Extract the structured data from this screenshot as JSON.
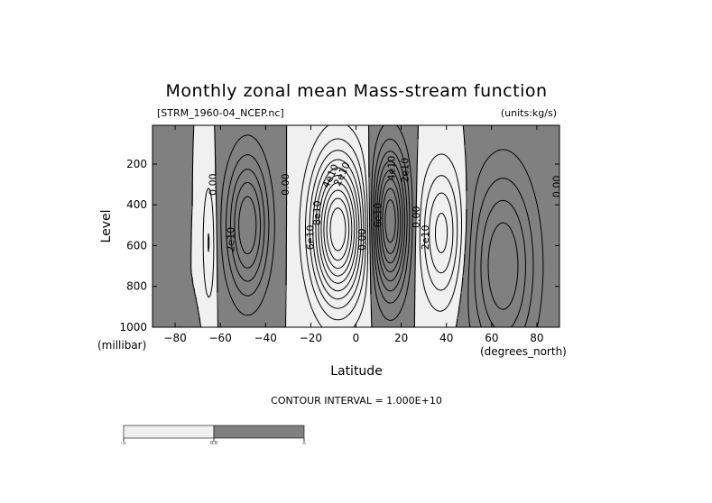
{
  "chart_data": {
    "type": "contour",
    "title": "Monthly zonal mean Mass-stream function",
    "file_label": "[STRM_1960-04_NCEP.nc]",
    "units_label": "(units:kg/s)",
    "xlabel": "Latitude",
    "xunit_label": "(degrees_north)",
    "ylabel": "Level",
    "yunit_label": "(millibar)",
    "x_ticks": [
      -80,
      -60,
      -40,
      -20,
      0,
      20,
      40,
      60,
      80
    ],
    "y_ticks": [
      200,
      400,
      600,
      800,
      1000
    ],
    "xlim": [
      -90,
      90
    ],
    "ylim": [
      1000,
      10
    ],
    "y_reversed": true,
    "contour_interval_text": "CONTOUR INTERVAL = 1.000E+10",
    "contour_interval": 10000000000.0,
    "shading": {
      "negative": "#f0f0f0",
      "positive": "#808080"
    },
    "colorbar": {
      "tick_labels": [
        "-∞",
        "0.0",
        "∞"
      ]
    },
    "cells": [
      {
        "lat": -48,
        "p": 500,
        "width": 9,
        "depth": 330,
        "amp": 60000000000.0
      },
      {
        "lat": -78,
        "p": 1050,
        "width": 6,
        "depth": 120,
        "amp": 12000000000.0
      },
      {
        "lat": -8,
        "p": 520,
        "width": 11,
        "depth": 340,
        "amp": -110000000000.0
      },
      {
        "lat": 15,
        "p": 480,
        "width": 7.5,
        "depth": 330,
        "amp": 90000000000.0
      },
      {
        "lat": 38,
        "p": 540,
        "width": 9,
        "depth": 320,
        "amp": -45000000000.0
      },
      {
        "lat": 65,
        "p": 700,
        "width": 14,
        "depth": 450,
        "amp": 50000000000.0
      },
      {
        "lat": -65,
        "p": 580,
        "width": 3,
        "depth": 320,
        "amp": -22000000000.0
      }
    ],
    "contour_labels": [
      {
        "text": "0.00",
        "lat": -63,
        "p": 300,
        "angle": -90
      },
      {
        "text": "2e10",
        "lat": -55,
        "p": 570,
        "angle": -90
      },
      {
        "text": "0.00",
        "lat": -31,
        "p": 300,
        "angle": -90
      },
      {
        "text": "6e10",
        "lat": -20,
        "p": 560,
        "angle": -90
      },
      {
        "text": "8e10",
        "lat": -17,
        "p": 440,
        "angle": -90
      },
      {
        "text": "4e10",
        "lat": -11,
        "p": 260,
        "angle": -65
      },
      {
        "text": "2e10",
        "lat": -6,
        "p": 250,
        "angle": -65
      },
      {
        "text": "0.00",
        "lat": 3,
        "p": 570,
        "angle": -90
      },
      {
        "text": "6e10",
        "lat": 10,
        "p": 450,
        "angle": -90
      },
      {
        "text": "4e10",
        "lat": 16,
        "p": 220,
        "angle": -90
      },
      {
        "text": "2e10",
        "lat": 22,
        "p": 230,
        "angle": -90
      },
      {
        "text": "0.00",
        "lat": 27,
        "p": 460,
        "angle": -90
      },
      {
        "text": "2e10",
        "lat": 31,
        "p": 560,
        "angle": -90
      },
      {
        "text": "0.00",
        "lat": 89,
        "p": 310,
        "angle": -90
      }
    ]
  }
}
